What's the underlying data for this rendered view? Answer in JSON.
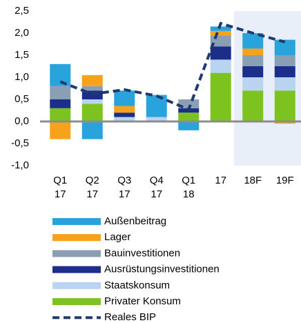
{
  "chart_data": {
    "type": "stacked_bar_line",
    "categories": [
      "Q1 17",
      "Q2 17",
      "Q3 17",
      "Q4 17",
      "Q1 18",
      "17",
      "18F",
      "19F"
    ],
    "series": [
      {
        "name": "Privater Konsum",
        "color": "#7dc31f",
        "values": [
          0.3,
          0.4,
          0,
          0,
          0.2,
          1.1,
          0.7,
          0.7
        ]
      },
      {
        "name": "Staatskonsum",
        "color": "#b8d4f0",
        "values": [
          0,
          0.1,
          0.1,
          0.1,
          0,
          0.3,
          0.3,
          0.3
        ]
      },
      {
        "name": "Ausrüstungsinvestitionen",
        "color": "#1b2f8a",
        "values": [
          0.2,
          0.2,
          0.1,
          0,
          0.1,
          0.3,
          0.25,
          0.25
        ]
      },
      {
        "name": "Bauinvestitionen",
        "color": "#8a9fb3",
        "values": [
          0.3,
          0.1,
          0,
          0,
          0.2,
          0.25,
          0.25,
          0.25
        ]
      },
      {
        "name": "Lager",
        "color": "#f7a21b",
        "values": [
          -0.4,
          0.25,
          0.15,
          0,
          0,
          0.1,
          0.15,
          -0.05
        ]
      },
      {
        "name": "Außenbeitrag",
        "color": "#29a3dc",
        "values": [
          0.5,
          -0.4,
          0.35,
          0.5,
          -0.2,
          0.1,
          0.35,
          0.35
        ]
      },
      {
        "name": "Reales BIP",
        "color": "#1f3b6e",
        "type": "line",
        "values": [
          0.9,
          0.62,
          0.72,
          0.58,
          0.27,
          2.22,
          2.0,
          1.8
        ]
      }
    ],
    "ylim": [
      -1.0,
      2.5
    ],
    "yticks": [
      {
        "value": -1.0,
        "label": "-1,0"
      },
      {
        "value": -0.5,
        "label": "-0,5"
      },
      {
        "value": 0,
        "label": "0,0"
      },
      {
        "value": 0.5,
        "label": "0,5"
      },
      {
        "value": 1.0,
        "label": "1,0"
      },
      {
        "value": 1.5,
        "label": "1,5"
      },
      {
        "value": 2.0,
        "label": "2,0"
      },
      {
        "value": 2.5,
        "label": "2,5"
      }
    ],
    "grid": false
  }
}
